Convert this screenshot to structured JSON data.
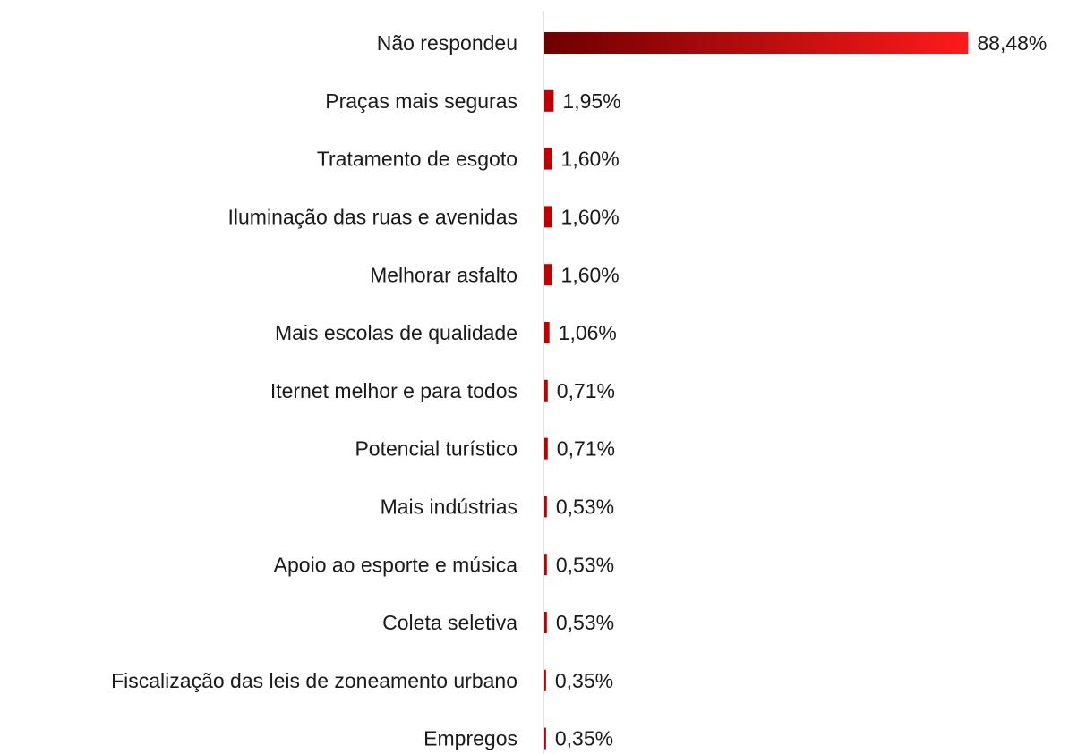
{
  "chart_data": {
    "type": "hbar",
    "categories": [
      "Não respondeu",
      "Praças mais seguras",
      "Tratamento de esgoto",
      "Iluminação das ruas e avenidas",
      "Melhorar asfalto",
      "Mais escolas de qualidade",
      "Iternet melhor e para todos",
      "Potencial turístico",
      "Mais indústrias",
      "Apoio ao esporte e música",
      "Coleta seletiva",
      "Fiscalização das leis de zoneamento urbano",
      "Empregos"
    ],
    "values": [
      88.48,
      1.95,
      1.6,
      1.6,
      1.6,
      1.06,
      0.71,
      0.71,
      0.53,
      0.53,
      0.53,
      0.35,
      0.35
    ],
    "value_labels": [
      "88,48%",
      "1,95%",
      "1,60%",
      "1,60%",
      "1,60%",
      "1,06%",
      "0,71%",
      "0,71%",
      "0,53%",
      "0,53%",
      "0,53%",
      "0,35%",
      "0,35%"
    ],
    "color": "#c00000",
    "xlim": [
      0,
      100
    ]
  }
}
